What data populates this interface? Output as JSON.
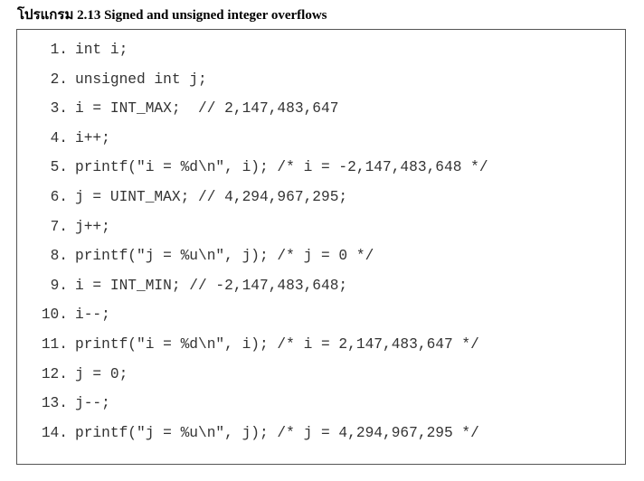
{
  "caption": "โปรแกรม 2.13 Signed and unsigned integer overflows",
  "code_lines": [
    {
      "num": "1.",
      "code": "int i;"
    },
    {
      "num": "2.",
      "code": "unsigned int j;"
    },
    {
      "num": "3.",
      "code": "i = INT_MAX;  // 2,147,483,647"
    },
    {
      "num": "4.",
      "code": "i++;"
    },
    {
      "num": "5.",
      "code": "printf(\"i = %d\\n\", i); /* i = -2,147,483,648 */"
    },
    {
      "num": "6.",
      "code": "j = UINT_MAX; // 4,294,967,295;"
    },
    {
      "num": "7.",
      "code": "j++;"
    },
    {
      "num": "8.",
      "code": "printf(\"j = %u\\n\", j); /* j = 0 */"
    },
    {
      "num": "9.",
      "code": "i = INT_MIN; // -2,147,483,648;"
    },
    {
      "num": "10.",
      "code": "i--;"
    },
    {
      "num": "11.",
      "code": "printf(\"i = %d\\n\", i); /* i = 2,147,483,647 */"
    },
    {
      "num": "12.",
      "code": "j = 0;"
    },
    {
      "num": "13.",
      "code": "j--;"
    },
    {
      "num": "14.",
      "code": "printf(\"j = %u\\n\", j); /* j = 4,294,967,295 */"
    }
  ]
}
